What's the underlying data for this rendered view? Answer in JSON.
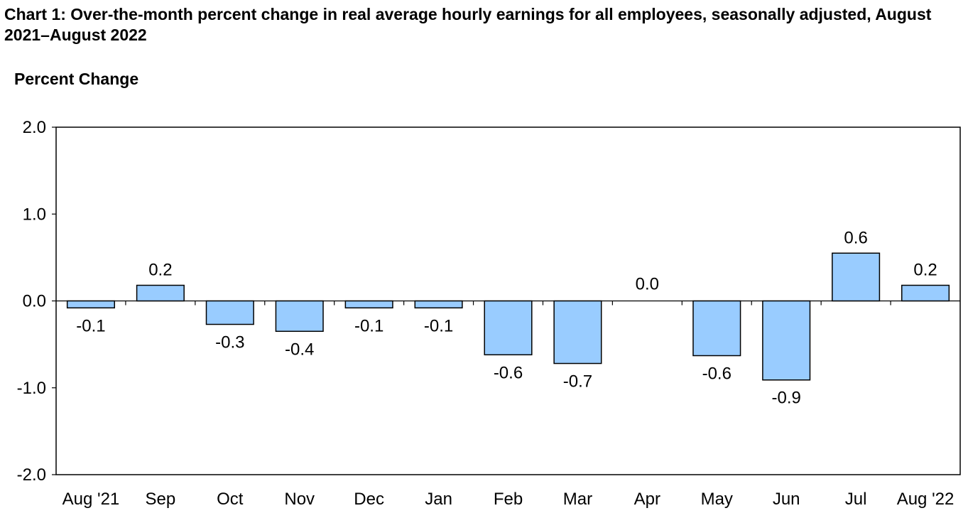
{
  "chart_data": {
    "type": "bar",
    "title": "Chart 1: Over-the-month percent change in real average hourly earnings for all employees, seasonally adjusted, August 2021–August 2022",
    "ylabel": "Percent Change",
    "xlabel": "",
    "categories": [
      "Aug '21",
      "Sep",
      "Oct",
      "Nov",
      "Dec",
      "Jan",
      "Feb",
      "Mar",
      "Apr",
      "May",
      "Jun",
      "Jul",
      "Aug '22"
    ],
    "values": [
      -0.08,
      0.18,
      -0.27,
      -0.35,
      -0.08,
      -0.08,
      -0.62,
      -0.72,
      0.0,
      -0.63,
      -0.91,
      0.55,
      0.18
    ],
    "data_labels": [
      "-0.1",
      "0.2",
      "-0.3",
      "-0.4",
      "-0.1",
      "-0.1",
      "-0.6",
      "-0.7",
      "0.0",
      "-0.6",
      "-0.9",
      "0.6",
      "0.2"
    ],
    "y_ticks": [
      2.0,
      1.0,
      0.0,
      -1.0,
      -2.0
    ],
    "y_tick_labels": [
      "2.0",
      "1.0",
      "0.0",
      "-1.0",
      "-2.0"
    ],
    "ylim": [
      -2.0,
      2.0
    ],
    "grid": false,
    "legend": "none",
    "bar_color": "#99ccff",
    "bar_edge_color": "#000000"
  }
}
